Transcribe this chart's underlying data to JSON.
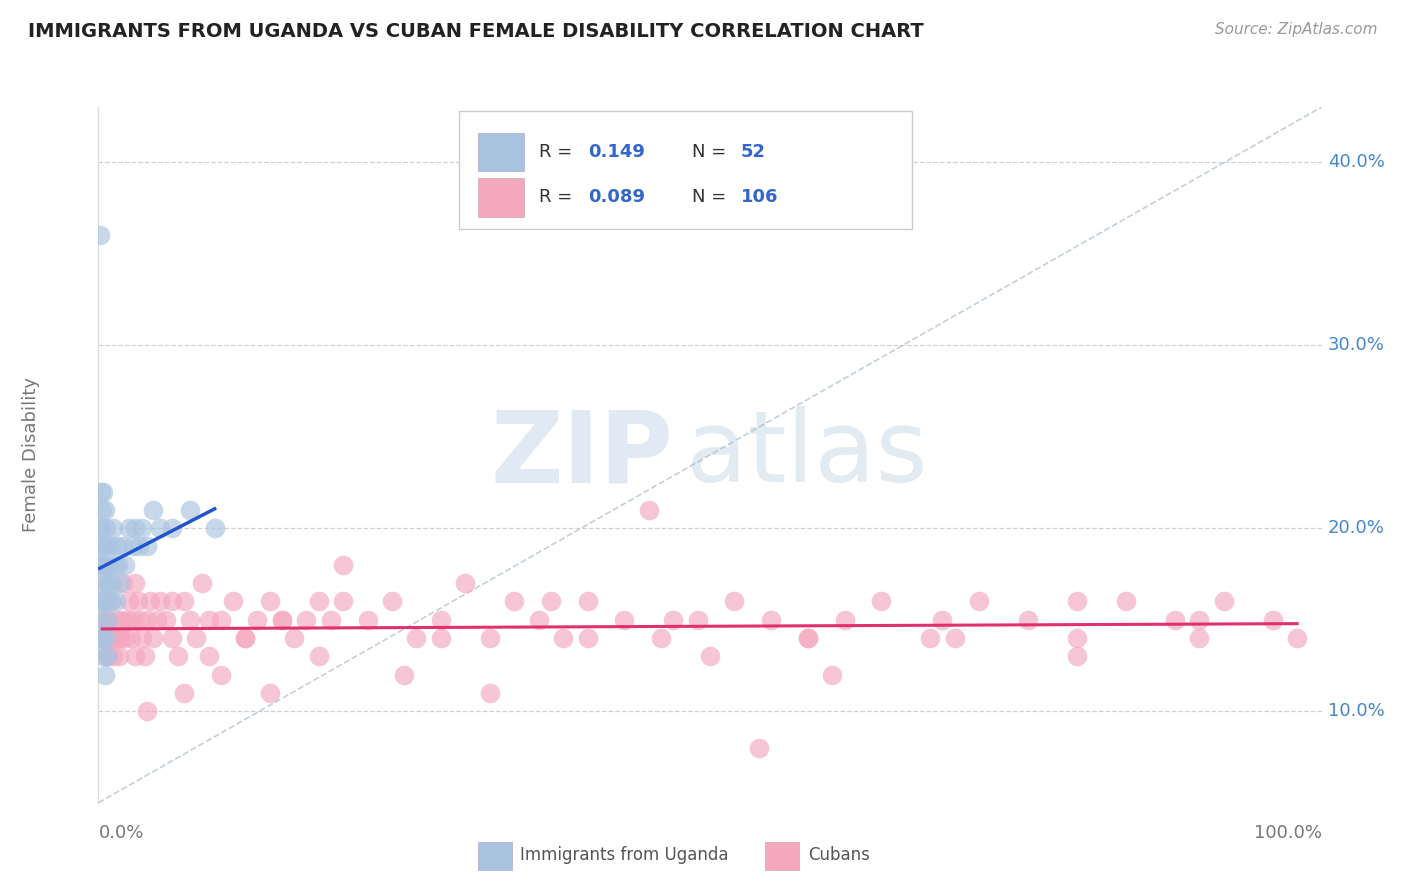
{
  "title": "IMMIGRANTS FROM UGANDA VS CUBAN FEMALE DISABILITY CORRELATION CHART",
  "source": "Source: ZipAtlas.com",
  "ylabel": "Female Disability",
  "watermark_zip": "ZIP",
  "watermark_atlas": "atlas",
  "legend": {
    "uganda_R": "0.149",
    "uganda_N": "52",
    "cuban_R": "0.089",
    "cuban_N": "106"
  },
  "y_ticks": [
    0.1,
    0.2,
    0.3,
    0.4
  ],
  "y_tick_labels": [
    "10.0%",
    "20.0%",
    "30.0%",
    "40.0%"
  ],
  "x_lim": [
    0.0,
    1.0
  ],
  "y_lim": [
    0.05,
    0.43
  ],
  "uganda_color": "#aac4e0",
  "cuban_color": "#f4a8c0",
  "uganda_line_color": "#2255cc",
  "cuban_line_color": "#e03070",
  "diag_color": "#aabbcc",
  "grid_color": "#cccccc",
  "background_color": "#ffffff",
  "tick_label_color": "#4488cc",
  "axis_label_color": "#777777",
  "legend_text_color": "#333333",
  "legend_val_color": "#3366cc",
  "uganda_scatter_x": [
    0.001,
    0.001,
    0.001,
    0.001,
    0.002,
    0.002,
    0.002,
    0.002,
    0.002,
    0.003,
    0.003,
    0.003,
    0.003,
    0.004,
    0.004,
    0.004,
    0.004,
    0.005,
    0.005,
    0.005,
    0.005,
    0.006,
    0.006,
    0.006,
    0.007,
    0.007,
    0.007,
    0.008,
    0.008,
    0.009,
    0.01,
    0.01,
    0.011,
    0.012,
    0.013,
    0.014,
    0.015,
    0.016,
    0.018,
    0.02,
    0.022,
    0.025,
    0.028,
    0.03,
    0.033,
    0.036,
    0.04,
    0.045,
    0.05,
    0.06,
    0.075,
    0.095
  ],
  "uganda_scatter_y": [
    0.36,
    0.2,
    0.18,
    0.15,
    0.22,
    0.2,
    0.18,
    0.16,
    0.14,
    0.21,
    0.19,
    0.17,
    0.14,
    0.22,
    0.19,
    0.16,
    0.13,
    0.21,
    0.18,
    0.16,
    0.12,
    0.2,
    0.17,
    0.14,
    0.19,
    0.16,
    0.13,
    0.18,
    0.15,
    0.17,
    0.19,
    0.16,
    0.17,
    0.2,
    0.18,
    0.16,
    0.19,
    0.18,
    0.17,
    0.19,
    0.18,
    0.2,
    0.19,
    0.2,
    0.19,
    0.2,
    0.19,
    0.21,
    0.2,
    0.2,
    0.21,
    0.2
  ],
  "cuban_scatter_x": [
    0.003,
    0.004,
    0.005,
    0.006,
    0.007,
    0.008,
    0.009,
    0.01,
    0.011,
    0.012,
    0.013,
    0.015,
    0.016,
    0.017,
    0.018,
    0.019,
    0.02,
    0.022,
    0.024,
    0.025,
    0.027,
    0.028,
    0.03,
    0.032,
    0.034,
    0.036,
    0.038,
    0.04,
    0.042,
    0.045,
    0.048,
    0.05,
    0.055,
    0.06,
    0.065,
    0.07,
    0.075,
    0.08,
    0.085,
    0.09,
    0.1,
    0.11,
    0.12,
    0.13,
    0.14,
    0.15,
    0.16,
    0.17,
    0.18,
    0.19,
    0.2,
    0.22,
    0.24,
    0.26,
    0.28,
    0.3,
    0.32,
    0.34,
    0.36,
    0.38,
    0.4,
    0.43,
    0.46,
    0.49,
    0.52,
    0.55,
    0.58,
    0.61,
    0.64,
    0.68,
    0.72,
    0.76,
    0.8,
    0.84,
    0.88,
    0.92,
    0.96,
    0.04,
    0.07,
    0.1,
    0.14,
    0.18,
    0.25,
    0.32,
    0.4,
    0.5,
    0.6,
    0.7,
    0.8,
    0.9,
    0.03,
    0.06,
    0.09,
    0.12,
    0.15,
    0.2,
    0.28,
    0.37,
    0.47,
    0.58,
    0.69,
    0.8,
    0.9,
    0.98,
    0.45,
    0.54
  ],
  "cuban_scatter_y": [
    0.15,
    0.14,
    0.15,
    0.13,
    0.14,
    0.13,
    0.15,
    0.16,
    0.14,
    0.13,
    0.14,
    0.15,
    0.14,
    0.13,
    0.14,
    0.15,
    0.17,
    0.14,
    0.15,
    0.16,
    0.14,
    0.15,
    0.13,
    0.16,
    0.15,
    0.14,
    0.13,
    0.15,
    0.16,
    0.14,
    0.15,
    0.16,
    0.15,
    0.14,
    0.13,
    0.16,
    0.15,
    0.14,
    0.17,
    0.13,
    0.15,
    0.16,
    0.14,
    0.15,
    0.16,
    0.15,
    0.14,
    0.15,
    0.16,
    0.15,
    0.18,
    0.15,
    0.16,
    0.14,
    0.15,
    0.17,
    0.14,
    0.16,
    0.15,
    0.14,
    0.16,
    0.15,
    0.14,
    0.15,
    0.16,
    0.15,
    0.14,
    0.15,
    0.16,
    0.14,
    0.16,
    0.15,
    0.14,
    0.16,
    0.15,
    0.16,
    0.15,
    0.1,
    0.11,
    0.12,
    0.11,
    0.13,
    0.12,
    0.11,
    0.14,
    0.13,
    0.12,
    0.14,
    0.13,
    0.14,
    0.17,
    0.16,
    0.15,
    0.14,
    0.15,
    0.16,
    0.14,
    0.16,
    0.15,
    0.14,
    0.15,
    0.16,
    0.15,
    0.14,
    0.21,
    0.08
  ]
}
